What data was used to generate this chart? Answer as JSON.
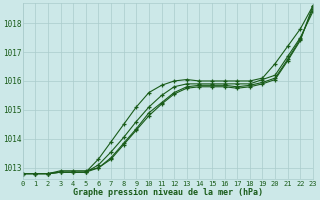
{
  "xlabel": "Graphe pression niveau de la mer (hPa)",
  "xlim": [
    0,
    23
  ],
  "ylim": [
    1012.6,
    1018.7
  ],
  "yticks": [
    1013,
    1014,
    1015,
    1016,
    1017,
    1018
  ],
  "xticks": [
    0,
    1,
    2,
    3,
    4,
    5,
    6,
    7,
    8,
    9,
    10,
    11,
    12,
    13,
    14,
    15,
    16,
    17,
    18,
    19,
    20,
    21,
    22,
    23
  ],
  "background_color": "#cce8e8",
  "grid_color": "#aacccc",
  "line_color": "#1a5c1a",
  "lines": [
    [
      1012.8,
      1012.8,
      1012.8,
      1012.9,
      1012.9,
      1012.9,
      1013.0,
      1013.3,
      1013.8,
      1014.3,
      1014.8,
      1015.2,
      1015.55,
      1015.75,
      1015.8,
      1015.8,
      1015.8,
      1015.75,
      1015.8,
      1015.9,
      1016.05,
      1016.7,
      1017.4,
      1018.6
    ],
    [
      1012.8,
      1012.8,
      1012.8,
      1012.85,
      1012.85,
      1012.85,
      1013.0,
      1013.35,
      1013.85,
      1014.35,
      1014.9,
      1015.25,
      1015.6,
      1015.8,
      1015.85,
      1015.85,
      1015.85,
      1015.8,
      1015.85,
      1015.95,
      1016.1,
      1016.75,
      1017.45,
      1018.5
    ],
    [
      1012.8,
      1012.8,
      1012.8,
      1012.85,
      1012.85,
      1012.85,
      1013.1,
      1013.55,
      1014.05,
      1014.6,
      1015.1,
      1015.5,
      1015.8,
      1015.9,
      1015.9,
      1015.9,
      1015.9,
      1015.9,
      1015.9,
      1016.05,
      1016.2,
      1016.85,
      1017.5,
      1018.4
    ],
    [
      1012.8,
      1012.8,
      1012.8,
      1012.85,
      1012.85,
      1012.85,
      1013.3,
      1013.9,
      1014.5,
      1015.1,
      1015.6,
      1015.85,
      1016.0,
      1016.05,
      1016.0,
      1016.0,
      1016.0,
      1016.0,
      1016.0,
      1016.1,
      1016.6,
      1017.2,
      1017.8,
      1018.6
    ]
  ]
}
